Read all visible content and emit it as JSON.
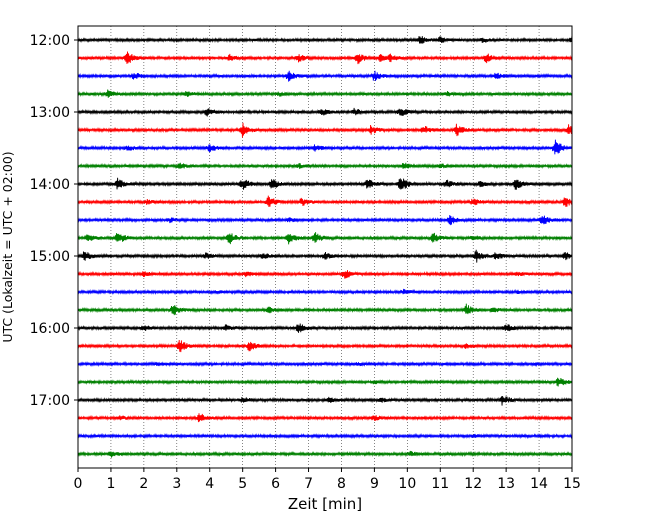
{
  "chart_data": {
    "type": "line",
    "xlabel": "Zeit  [min]",
    "ylabel": "UTC (Lokalzeit = UTC + 02:00)",
    "xlim": [
      0,
      15
    ],
    "x_ticks": [
      0,
      1,
      2,
      3,
      4,
      5,
      6,
      7,
      8,
      9,
      10,
      11,
      12,
      13,
      14,
      15
    ],
    "y_tick_labels": [
      "12:00",
      "13:00",
      "14:00",
      "15:00",
      "16:00",
      "17:00"
    ],
    "minutes_per_trace": 15,
    "start_time": "12:00",
    "grid": "vertical dotted at each minute",
    "trace_colors": [
      "#000000",
      "#ff0000",
      "#0000ff",
      "#008000"
    ],
    "traces": [
      {
        "time": "12:00",
        "color": "#000000",
        "events": [
          [
            10.4,
            0.6
          ],
          [
            11.0,
            0.4
          ],
          [
            12.3,
            0.3
          ],
          [
            15.0,
            0.4
          ]
        ]
      },
      {
        "time": "12:15",
        "color": "#ff0000",
        "events": [
          [
            1.5,
            1.0
          ],
          [
            4.6,
            0.5
          ],
          [
            6.7,
            0.5
          ],
          [
            8.5,
            0.8
          ],
          [
            9.2,
            0.5
          ],
          [
            9.5,
            0.5
          ],
          [
            12.4,
            0.7
          ]
        ]
      },
      {
        "time": "12:30",
        "color": "#0000ff",
        "events": [
          [
            1.7,
            0.5
          ],
          [
            6.4,
            0.7
          ],
          [
            9.0,
            0.7
          ],
          [
            12.7,
            0.4
          ]
        ]
      },
      {
        "time": "12:45",
        "color": "#008000",
        "events": [
          [
            0.9,
            0.5
          ],
          [
            3.3,
            0.3
          ],
          [
            6.1,
            0.3
          ],
          [
            11.2,
            0.3
          ]
        ]
      },
      {
        "time": "13:00",
        "color": "#000000",
        "events": [
          [
            3.9,
            0.7
          ],
          [
            7.4,
            0.5
          ],
          [
            8.4,
            0.5
          ],
          [
            9.8,
            0.7
          ]
        ]
      },
      {
        "time": "13:15",
        "color": "#ff0000",
        "events": [
          [
            5.0,
            1.0
          ],
          [
            8.9,
            0.6
          ],
          [
            10.5,
            0.6
          ],
          [
            11.5,
            0.9
          ],
          [
            14.9,
            0.7
          ]
        ]
      },
      {
        "time": "13:30",
        "color": "#0000ff",
        "events": [
          [
            1.5,
            0.4
          ],
          [
            4.0,
            0.6
          ],
          [
            7.2,
            0.4
          ],
          [
            14.5,
            1.3
          ]
        ]
      },
      {
        "time": "13:45",
        "color": "#008000",
        "events": [
          [
            3.1,
            0.4
          ],
          [
            6.7,
            0.3
          ],
          [
            9.9,
            0.5
          ],
          [
            11.0,
            0.3
          ]
        ]
      },
      {
        "time": "14:00",
        "color": "#000000",
        "events": [
          [
            1.2,
            0.8
          ],
          [
            5.0,
            0.9
          ],
          [
            5.9,
            0.8
          ],
          [
            8.8,
            0.7
          ],
          [
            9.8,
            1.2
          ],
          [
            11.2,
            0.6
          ],
          [
            12.2,
            0.4
          ],
          [
            13.3,
            0.8
          ]
        ]
      },
      {
        "time": "14:15",
        "color": "#ff0000",
        "events": [
          [
            2.1,
            0.3
          ],
          [
            5.8,
            0.9
          ],
          [
            6.8,
            0.6
          ],
          [
            12.0,
            0.5
          ],
          [
            14.8,
            0.7
          ]
        ]
      },
      {
        "time": "14:30",
        "color": "#0000ff",
        "events": [
          [
            2.8,
            0.3
          ],
          [
            6.4,
            0.3
          ],
          [
            11.3,
            0.7
          ],
          [
            14.1,
            0.8
          ]
        ]
      },
      {
        "time": "14:45",
        "color": "#008000",
        "events": [
          [
            0.3,
            0.6
          ],
          [
            1.2,
            1.0
          ],
          [
            4.6,
            0.9
          ],
          [
            6.4,
            0.8
          ],
          [
            7.2,
            0.8
          ],
          [
            10.8,
            0.7
          ],
          [
            12.0,
            0.4
          ]
        ]
      },
      {
        "time": "15:00",
        "color": "#000000",
        "events": [
          [
            0.2,
            0.7
          ],
          [
            3.9,
            0.4
          ],
          [
            5.6,
            0.5
          ],
          [
            7.5,
            0.5
          ],
          [
            12.1,
            1.0
          ],
          [
            12.7,
            0.5
          ],
          [
            14.8,
            0.6
          ]
        ]
      },
      {
        "time": "15:15",
        "color": "#ff0000",
        "events": [
          [
            2.0,
            0.3
          ],
          [
            5.1,
            0.3
          ],
          [
            8.1,
            0.7
          ],
          [
            13.3,
            0.3
          ]
        ]
      },
      {
        "time": "15:30",
        "color": "#0000ff",
        "events": [
          [
            4.2,
            0.2
          ],
          [
            9.9,
            0.3
          ],
          [
            13.4,
            0.2
          ]
        ]
      },
      {
        "time": "15:45",
        "color": "#008000",
        "events": [
          [
            2.9,
            0.9
          ],
          [
            5.8,
            0.4
          ],
          [
            11.8,
            0.8
          ],
          [
            12.6,
            0.3
          ]
        ]
      },
      {
        "time": "16:00",
        "color": "#000000",
        "events": [
          [
            2.0,
            0.4
          ],
          [
            4.5,
            0.5
          ],
          [
            6.7,
            0.7
          ],
          [
            13.0,
            0.6
          ]
        ]
      },
      {
        "time": "16:15",
        "color": "#ff0000",
        "events": [
          [
            3.1,
            0.9
          ],
          [
            5.2,
            0.7
          ],
          [
            11.8,
            0.3
          ]
        ]
      },
      {
        "time": "16:30",
        "color": "#0000ff",
        "events": [
          [
            2.4,
            0.2
          ],
          [
            8.5,
            0.2
          ],
          [
            13.9,
            0.2
          ]
        ]
      },
      {
        "time": "16:45",
        "color": "#008000",
        "events": [
          [
            9.0,
            0.2
          ],
          [
            14.6,
            0.7
          ]
        ]
      },
      {
        "time": "17:00",
        "color": "#000000",
        "events": [
          [
            5.0,
            0.4
          ],
          [
            7.6,
            0.4
          ],
          [
            9.2,
            0.3
          ],
          [
            12.9,
            0.8
          ]
        ]
      },
      {
        "time": "17:15",
        "color": "#ff0000",
        "events": [
          [
            1.3,
            0.3
          ],
          [
            3.7,
            0.7
          ],
          [
            9.0,
            0.4
          ]
        ]
      },
      {
        "time": "17:30",
        "color": "#0000ff",
        "events": [
          [
            12.0,
            0.2
          ]
        ]
      },
      {
        "time": "17:45",
        "color": "#008000",
        "events": [
          [
            1.0,
            0.4
          ],
          [
            10.1,
            0.3
          ]
        ]
      }
    ]
  }
}
